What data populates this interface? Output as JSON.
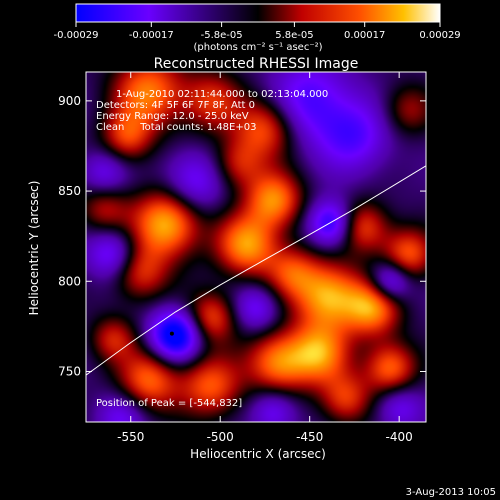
{
  "colorbar": {
    "ticks": [
      "-0.00029",
      "-0.00017",
      "-5.8e-05",
      "5.8e-05",
      "0.00017",
      "0.00029"
    ],
    "tick_values": [
      -0.00029,
      -0.00017,
      -5.8e-05,
      5.8e-05,
      0.00017,
      0.00029
    ],
    "range": [
      -0.00029,
      0.00029
    ],
    "colormap": "blue-purple-black-red-orange-yellow-white",
    "units_label": "(photons cm⁻² s⁻¹ asec⁻²)"
  },
  "chart_data": {
    "type": "heatmap",
    "title": "Reconstructed RHESSI Image",
    "xlabel": "Heliocentric X (arcsec)",
    "ylabel": "Heliocentric Y (arcsec)",
    "xlim": [
      -575,
      -385
    ],
    "ylim": [
      722,
      916
    ],
    "x_ticks": [
      "-550",
      "-500",
      "-450",
      "-400"
    ],
    "x_tick_values": [
      -550,
      -500,
      -450,
      -400
    ],
    "y_ticks": [
      "750",
      "800",
      "850",
      "900"
    ],
    "y_tick_values": [
      750,
      800,
      850,
      900
    ],
    "annotations": [
      "1-Aug-2010 02:11:44.000 to 02:13:04.000",
      "Detectors: 4F 5F 6F 7F 8F, Att 0",
      "Energy Range: 12.0 - 25.0 keV",
      "Clean     Total counts: 1.48E+03",
      "Position of Peak = [-544,832]"
    ],
    "limb_curve": [
      [
        -575,
        748
      ],
      [
        -550,
        766
      ],
      [
        -525,
        783
      ],
      [
        -500,
        798
      ],
      [
        -475,
        812
      ],
      [
        -450,
        826
      ],
      [
        -425,
        840
      ],
      [
        -400,
        855
      ],
      [
        -385,
        864
      ]
    ],
    "min_marker": [
      -527,
      771
    ],
    "blobs": [
      {
        "x": -540,
        "y": 905,
        "a": 0.8,
        "s": 14
      },
      {
        "x": -505,
        "y": 900,
        "a": 0.55,
        "s": 12
      },
      {
        "x": -475,
        "y": 885,
        "a": 0.7,
        "s": 12
      },
      {
        "x": -552,
        "y": 880,
        "a": 0.6,
        "s": 10
      },
      {
        "x": -490,
        "y": 865,
        "a": 0.5,
        "s": 10
      },
      {
        "x": -530,
        "y": 832,
        "a": 1.0,
        "s": 13
      },
      {
        "x": -470,
        "y": 845,
        "a": 0.85,
        "s": 11
      },
      {
        "x": -485,
        "y": 820,
        "a": 0.9,
        "s": 12
      },
      {
        "x": -545,
        "y": 805,
        "a": 0.6,
        "s": 11
      },
      {
        "x": -565,
        "y": 840,
        "a": 0.45,
        "s": 10
      },
      {
        "x": -540,
        "y": 745,
        "a": 0.75,
        "s": 12
      },
      {
        "x": -505,
        "y": 742,
        "a": 0.7,
        "s": 12
      },
      {
        "x": -468,
        "y": 755,
        "a": 0.8,
        "s": 12
      },
      {
        "x": -440,
        "y": 792,
        "a": 0.95,
        "s": 13
      },
      {
        "x": -415,
        "y": 785,
        "a": 0.85,
        "s": 11
      },
      {
        "x": -445,
        "y": 760,
        "a": 0.85,
        "s": 12
      },
      {
        "x": -405,
        "y": 752,
        "a": 0.75,
        "s": 10
      },
      {
        "x": -420,
        "y": 830,
        "a": 0.65,
        "s": 10
      },
      {
        "x": -395,
        "y": 815,
        "a": 0.7,
        "s": 10
      },
      {
        "x": -505,
        "y": 780,
        "a": 0.65,
        "s": 10
      },
      {
        "x": -460,
        "y": 805,
        "a": 0.55,
        "s": 10
      },
      {
        "x": -430,
        "y": 735,
        "a": 0.6,
        "s": 10
      },
      {
        "x": -560,
        "y": 768,
        "a": 0.5,
        "s": 9
      },
      {
        "x": -395,
        "y": 895,
        "a": 0.4,
        "s": 10
      },
      {
        "x": -450,
        "y": 900,
        "a": -0.55,
        "s": 16
      },
      {
        "x": -425,
        "y": 880,
        "a": -0.5,
        "s": 14
      },
      {
        "x": -515,
        "y": 855,
        "a": -0.5,
        "s": 12
      },
      {
        "x": -525,
        "y": 770,
        "a": -1.0,
        "s": 10
      },
      {
        "x": -438,
        "y": 832,
        "a": -0.75,
        "s": 9
      },
      {
        "x": -405,
        "y": 800,
        "a": -0.65,
        "s": 8
      },
      {
        "x": -560,
        "y": 815,
        "a": -0.55,
        "s": 10
      },
      {
        "x": -480,
        "y": 785,
        "a": -0.45,
        "s": 9
      },
      {
        "x": -555,
        "y": 725,
        "a": -0.4,
        "s": 10
      },
      {
        "x": -470,
        "y": 728,
        "a": -0.45,
        "s": 9
      },
      {
        "x": -400,
        "y": 730,
        "a": -0.4,
        "s": 9
      },
      {
        "x": -565,
        "y": 860,
        "a": -0.4,
        "s": 9
      }
    ]
  },
  "footer": {
    "timestamp": "3-Aug-2013 10:05"
  }
}
